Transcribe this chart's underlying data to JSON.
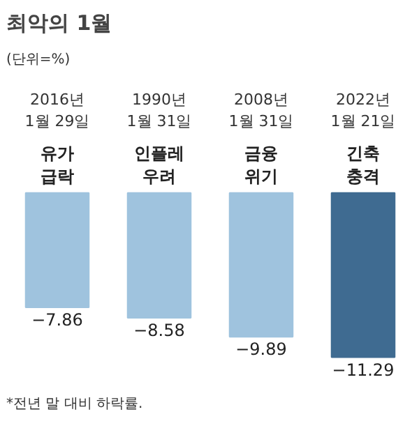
{
  "chart_data": {
    "type": "bar",
    "title": "최악의 1월",
    "subtitle": "(단위=%)",
    "categories": [
      "2016년 1월 29일",
      "1990년 1월 31일",
      "2008년 1월 31일",
      "2022년 1월 21일"
    ],
    "values": [
      -7.86,
      -8.58,
      -9.89,
      -11.29
    ],
    "colors": [
      "#9fc3de",
      "#9fc3de",
      "#9fc3de",
      "#3f6b91"
    ],
    "data_labels": true,
    "annotations": [
      "유가 급락",
      "인플레 우려",
      "금융 위기",
      "긴축 충격",
      "*전년 말 대비 하락률."
    ],
    "grid": false
  }
}
